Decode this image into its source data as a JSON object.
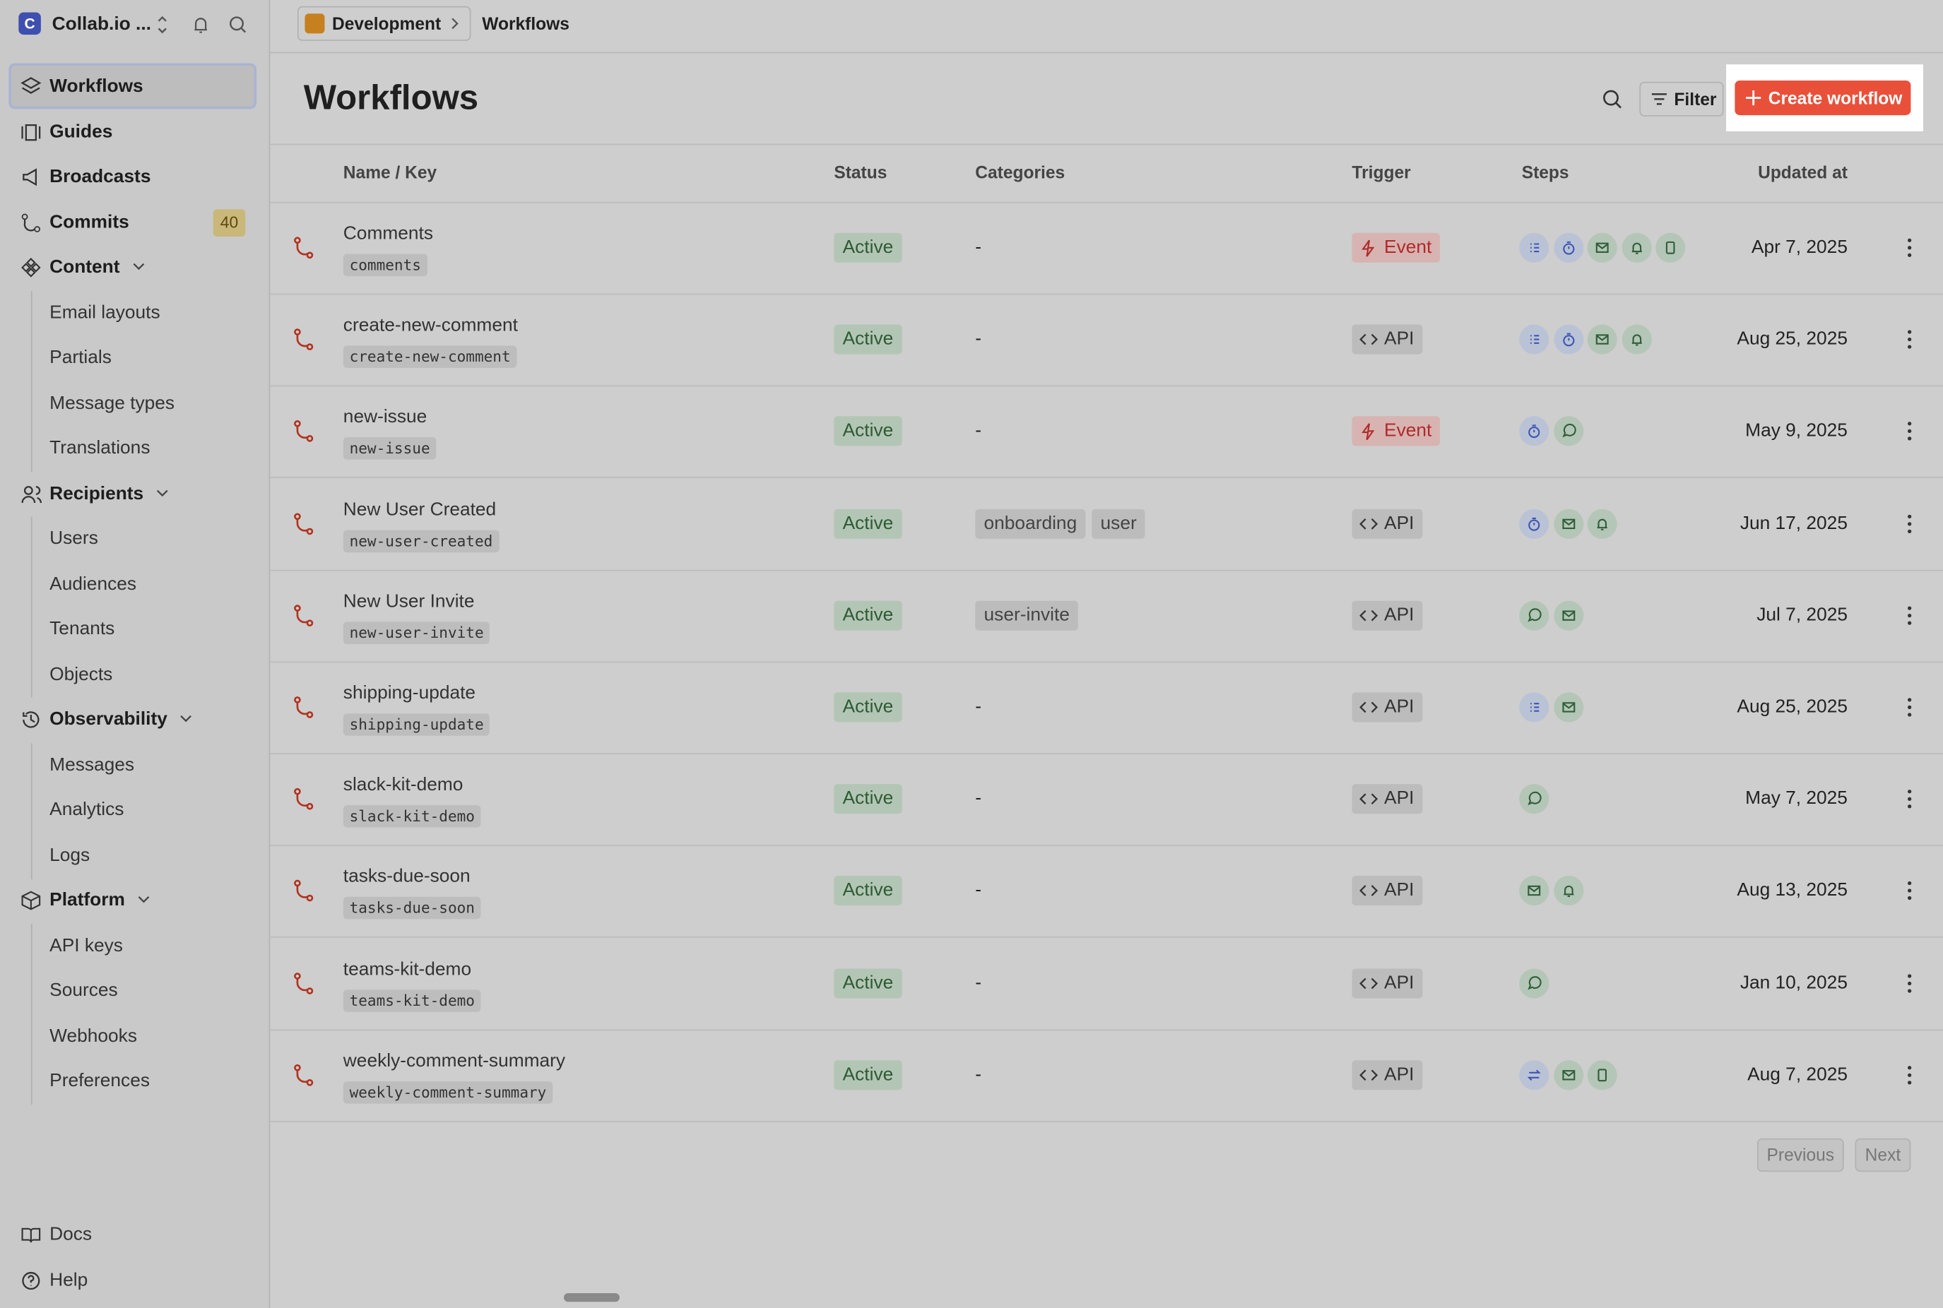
{
  "sidebar": {
    "workspace": "Collab.io ...",
    "nav": [
      {
        "label": "Workflows",
        "level": 0,
        "active": true
      },
      {
        "label": "Guides",
        "level": 0
      },
      {
        "label": "Broadcasts",
        "level": 0
      },
      {
        "label": "Commits",
        "level": 0,
        "badge": "40"
      },
      {
        "label": "Content",
        "level": 0,
        "expand": true
      },
      {
        "label": "Email layouts",
        "level": 1
      },
      {
        "label": "Partials",
        "level": 1
      },
      {
        "label": "Message types",
        "level": 1
      },
      {
        "label": "Translations",
        "level": 1
      },
      {
        "label": "Recipients",
        "level": 0,
        "expand": true
      },
      {
        "label": "Users",
        "level": 1
      },
      {
        "label": "Audiences",
        "level": 1
      },
      {
        "label": "Tenants",
        "level": 1
      },
      {
        "label": "Objects",
        "level": 1
      },
      {
        "label": "Observability",
        "level": 0,
        "expand": true
      },
      {
        "label": "Messages",
        "level": 1
      },
      {
        "label": "Analytics",
        "level": 1
      },
      {
        "label": "Logs",
        "level": 1
      },
      {
        "label": "Platform",
        "level": 0,
        "expand": true
      },
      {
        "label": "API keys",
        "level": 1
      },
      {
        "label": "Sources",
        "level": 1
      },
      {
        "label": "Webhooks",
        "level": 1
      },
      {
        "label": "Preferences",
        "level": 1
      }
    ],
    "footer": [
      "Docs",
      "Help"
    ]
  },
  "header": {
    "breadcrumb": [
      "Development",
      "Workflows"
    ],
    "title": "Workflows",
    "filter": "Filter",
    "create": "Create workflow"
  },
  "table": {
    "columns": [
      "Name / Key",
      "Status",
      "Categories",
      "Trigger",
      "Steps",
      "Updated at"
    ],
    "rows": [
      {
        "name": "Comments",
        "key": "comments",
        "status": "Active",
        "categories": [
          "-"
        ],
        "trigger": "Event",
        "steps": [
          "list",
          "timer",
          "mail",
          "bell",
          "phone"
        ],
        "updated": "Apr 7, 2025"
      },
      {
        "name": "create-new-comment",
        "key": "create-new-comment",
        "status": "Active",
        "categories": [
          "-"
        ],
        "trigger": "API",
        "steps": [
          "list",
          "timer",
          "mail",
          "bell"
        ],
        "updated": "Aug 25, 2025"
      },
      {
        "name": "new-issue",
        "key": "new-issue",
        "status": "Active",
        "categories": [
          "-"
        ],
        "trigger": "Event",
        "steps": [
          "timer",
          "chat"
        ],
        "updated": "May 9, 2025"
      },
      {
        "name": "New User Created",
        "key": "new-user-created",
        "status": "Active",
        "categories": [
          "onboarding",
          "user"
        ],
        "trigger": "API",
        "steps": [
          "timer",
          "mail",
          "bell"
        ],
        "updated": "Jun 17, 2025"
      },
      {
        "name": "New User Invite",
        "key": "new-user-invite",
        "status": "Active",
        "categories": [
          "user-invite"
        ],
        "trigger": "API",
        "steps": [
          "chat",
          "mail"
        ],
        "updated": "Jul 7, 2025"
      },
      {
        "name": "shipping-update",
        "key": "shipping-update",
        "status": "Active",
        "categories": [
          "-"
        ],
        "trigger": "API",
        "steps": [
          "list",
          "mail"
        ],
        "updated": "Aug 25, 2025"
      },
      {
        "name": "slack-kit-demo",
        "key": "slack-kit-demo",
        "status": "Active",
        "categories": [
          "-"
        ],
        "trigger": "API",
        "steps": [
          "chat"
        ],
        "updated": "May 7, 2025"
      },
      {
        "name": "tasks-due-soon",
        "key": "tasks-due-soon",
        "status": "Active",
        "categories": [
          "-"
        ],
        "trigger": "API",
        "steps": [
          "mail",
          "bell"
        ],
        "updated": "Aug 13, 2025"
      },
      {
        "name": "teams-kit-demo",
        "key": "teams-kit-demo",
        "status": "Active",
        "categories": [
          "-"
        ],
        "trigger": "API",
        "steps": [
          "chat"
        ],
        "updated": "Jan 10, 2025"
      },
      {
        "name": "weekly-comment-summary",
        "key": "weekly-comment-summary",
        "status": "Active",
        "categories": [
          "-"
        ],
        "trigger": "API",
        "steps": [
          "swap",
          "mail",
          "phone"
        ],
        "updated": "Aug 7, 2025"
      }
    ]
  },
  "pagination": {
    "previous": "Previous",
    "next": "Next"
  }
}
